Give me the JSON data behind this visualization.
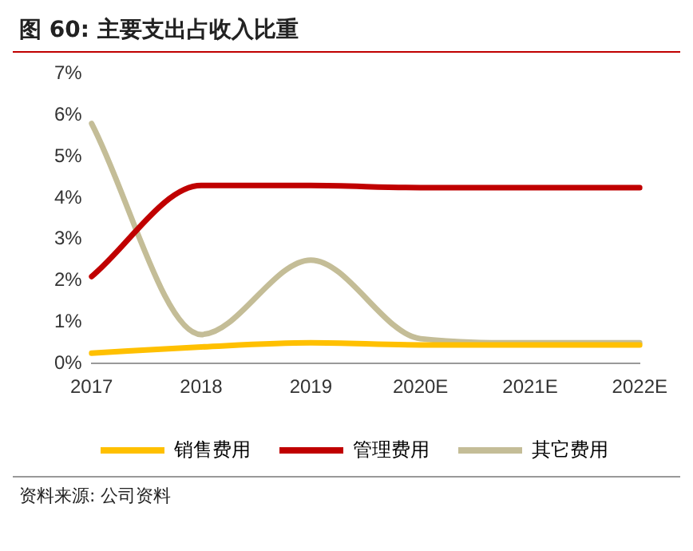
{
  "chart_data": {
    "type": "line",
    "title": "图 60: 主要支出占收入比重",
    "categories": [
      "2017",
      "2018",
      "2019",
      "2020E",
      "2021E",
      "2022E"
    ],
    "series": [
      {
        "name": "销售费用",
        "color": "#ffc000",
        "values": [
          0.25,
          0.4,
          0.5,
          0.45,
          0.45,
          0.45
        ]
      },
      {
        "name": "管理费用",
        "color": "#c00000",
        "values": [
          2.1,
          4.3,
          4.3,
          4.25,
          4.25,
          4.25
        ]
      },
      {
        "name": "其它费用",
        "color": "#c4bd97",
        "values": [
          5.8,
          0.7,
          2.5,
          0.6,
          0.5,
          0.5
        ]
      }
    ],
    "ylim": [
      0,
      7
    ],
    "yticks": [
      {
        "value": 0,
        "label": "0%"
      },
      {
        "value": 1,
        "label": "1%"
      },
      {
        "value": 2,
        "label": "2%"
      },
      {
        "value": 3,
        "label": "3%"
      },
      {
        "value": 4,
        "label": "4%"
      },
      {
        "value": 5,
        "label": "5%"
      },
      {
        "value": 6,
        "label": "6%"
      },
      {
        "value": 7,
        "label": "7%"
      }
    ],
    "legend": "bottom",
    "annotations": [
      "资料来源: 公司资料"
    ]
  }
}
